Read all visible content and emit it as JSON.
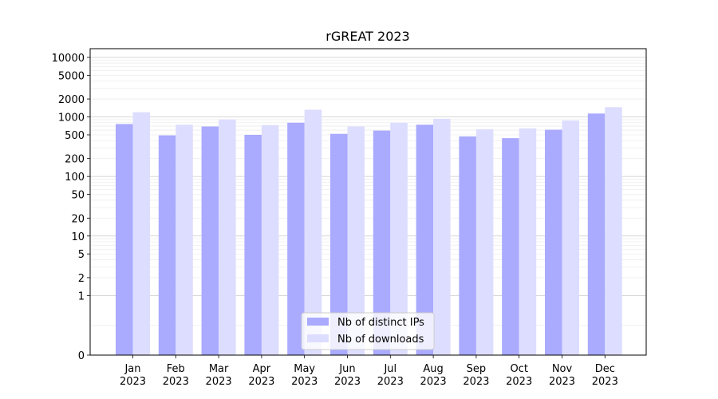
{
  "chart_data": {
    "type": "bar",
    "title": "rGREAT 2023",
    "xlabel": "",
    "ylabel": "",
    "yscale": "symlog",
    "ylim": [
      0,
      14000
    ],
    "y_ticks": [
      0,
      1,
      2,
      5,
      10,
      20,
      50,
      100,
      200,
      500,
      1000,
      2000,
      5000,
      10000
    ],
    "grid": "horizontal",
    "legend_position": "bottom-center",
    "categories": [
      "Jan\n2023",
      "Feb\n2023",
      "Mar\n2023",
      "Apr\n2023",
      "May\n2023",
      "Jun\n2023",
      "Jul\n2023",
      "Aug\n2023",
      "Sep\n2023",
      "Oct\n2023",
      "Nov\n2023",
      "Dec\n2023"
    ],
    "series": [
      {
        "name": "Nb of distinct IPs",
        "color": "#aaaaff",
        "values": [
          760,
          490,
          690,
          500,
          800,
          520,
          590,
          740,
          470,
          440,
          610,
          1140
        ]
      },
      {
        "name": "Nb of downloads",
        "color": "#ddddff",
        "values": [
          1200,
          740,
          910,
          730,
          1320,
          690,
          800,
          930,
          620,
          640,
          870,
          1460
        ]
      }
    ]
  }
}
